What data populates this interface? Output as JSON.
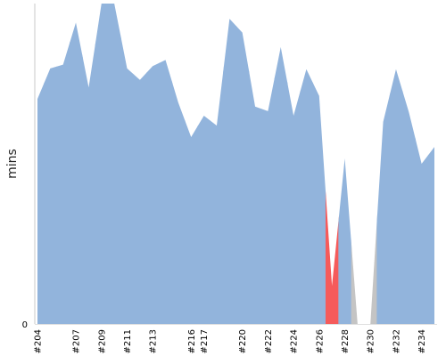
{
  "chart_data": {
    "type": "area",
    "ylabel": "mins",
    "y_tick_labels": [
      "0"
    ],
    "ylim": [
      0,
      42
    ],
    "x_ticks": [
      "#204",
      "#207",
      "#209",
      "#211",
      "#213",
      "#216",
      "#217",
      "#220",
      "#222",
      "#224",
      "#226",
      "#228",
      "#230",
      "#232",
      "#234"
    ],
    "colors": {
      "success": "#92b4dc",
      "failure": "#f55b5b",
      "aborted": "#c4c4c4"
    },
    "builds": [
      {
        "build": 204,
        "value": 29.5,
        "status": "success"
      },
      {
        "build": 205,
        "value": 33.5,
        "status": "success"
      },
      {
        "build": 206,
        "value": 34.0,
        "status": "success"
      },
      {
        "build": 207,
        "value": 39.5,
        "status": "success"
      },
      {
        "build": 208,
        "value": 31.0,
        "status": "success"
      },
      {
        "build": 209,
        "value": 42.0,
        "status": "success"
      },
      {
        "build": 210,
        "value": 42.0,
        "status": "success"
      },
      {
        "build": 211,
        "value": 33.5,
        "status": "success"
      },
      {
        "build": 212,
        "value": 32.0,
        "status": "success"
      },
      {
        "build": 213,
        "value": 33.8,
        "status": "success"
      },
      {
        "build": 214,
        "value": 34.6,
        "status": "success"
      },
      {
        "build": 215,
        "value": 29.0,
        "status": "success"
      },
      {
        "build": 216,
        "value": 24.5,
        "status": "success"
      },
      {
        "build": 217,
        "value": 27.3,
        "status": "success"
      },
      {
        "build": 218,
        "value": 26.0,
        "status": "success"
      },
      {
        "build": 219,
        "value": 40.0,
        "status": "success"
      },
      {
        "build": 220,
        "value": 38.2,
        "status": "success"
      },
      {
        "build": 221,
        "value": 28.5,
        "status": "success"
      },
      {
        "build": 222,
        "value": 27.9,
        "status": "success"
      },
      {
        "build": 223,
        "value": 36.3,
        "status": "success"
      },
      {
        "build": 224,
        "value": 27.3,
        "status": "success"
      },
      {
        "build": 225,
        "value": 33.4,
        "status": "success"
      },
      {
        "build": 226,
        "value": 29.9,
        "status": "success"
      },
      {
        "build": 227,
        "value": 5.0,
        "status": "failure"
      },
      {
        "build": 228,
        "value": 21.7,
        "status": "success"
      },
      {
        "build": 229,
        "value": 0.0,
        "status": "aborted"
      },
      {
        "build": 230,
        "value": 0.0,
        "status": "aborted"
      },
      {
        "build": 231,
        "value": 26.5,
        "status": "success"
      },
      {
        "build": 232,
        "value": 33.4,
        "status": "success"
      },
      {
        "build": 233,
        "value": 27.8,
        "status": "success"
      },
      {
        "build": 234,
        "value": 21.0,
        "status": "success"
      },
      {
        "build": 235,
        "value": 23.2,
        "status": "success"
      }
    ]
  }
}
